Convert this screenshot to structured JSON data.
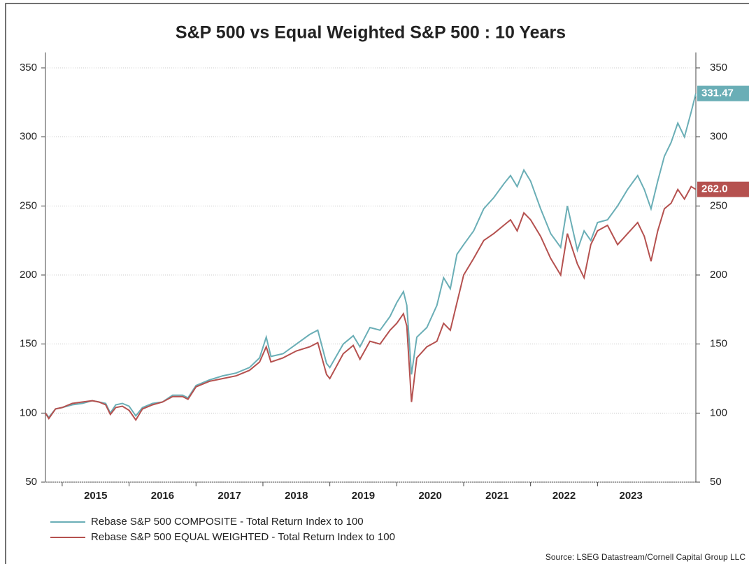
{
  "chart_data": {
    "type": "line",
    "title": "S&P 500 vs Equal Weighted S&P 500 : 10 Years",
    "source": "Source: LSEG Datastream/Cornell Capital Group LLC",
    "x": [
      2014.75,
      2014.8,
      2014.9,
      2015.0,
      2015.15,
      2015.3,
      2015.45,
      2015.55,
      2015.65,
      2015.72,
      2015.8,
      2015.9,
      2016.0,
      2016.1,
      2016.2,
      2016.35,
      2016.5,
      2016.65,
      2016.8,
      2016.88,
      2017.0,
      2017.2,
      2017.4,
      2017.6,
      2017.8,
      2017.95,
      2018.05,
      2018.12,
      2018.3,
      2018.5,
      2018.7,
      2018.82,
      2018.95,
      2019.0,
      2019.2,
      2019.35,
      2019.45,
      2019.6,
      2019.75,
      2019.9,
      2020.0,
      2020.1,
      2020.15,
      2020.22,
      2020.3,
      2020.45,
      2020.6,
      2020.7,
      2020.8,
      2020.9,
      2021.0,
      2021.15,
      2021.3,
      2021.45,
      2021.6,
      2021.7,
      2021.8,
      2021.9,
      2022.0,
      2022.15,
      2022.3,
      2022.45,
      2022.55,
      2022.7,
      2022.8,
      2022.9,
      2023.0,
      2023.15,
      2023.3,
      2023.45,
      2023.6,
      2023.7,
      2023.8,
      2023.9,
      2024.0,
      2024.1,
      2024.2,
      2024.3,
      2024.4,
      2024.47
    ],
    "series": [
      {
        "name": "Rebase S&P 500 COMPOSITE - Total Return Index to 100",
        "color": "#6aaeb6",
        "last_value_label": "331.47",
        "values": [
          100,
          97,
          103,
          104,
          106,
          107,
          109,
          108,
          107,
          100,
          106,
          107,
          105,
          98,
          104,
          107,
          108,
          113,
          113,
          111,
          120,
          124,
          127,
          129,
          133,
          140,
          155,
          141,
          143,
          150,
          157,
          160,
          136,
          133,
          150,
          156,
          148,
          162,
          160,
          170,
          180,
          188,
          178,
          128,
          155,
          162,
          178,
          198,
          190,
          215,
          222,
          232,
          248,
          256,
          266,
          272,
          264,
          276,
          268,
          248,
          230,
          220,
          250,
          218,
          232,
          225,
          238,
          240,
          250,
          262,
          272,
          262,
          248,
          268,
          286,
          296,
          310,
          300,
          318,
          331.47
        ]
      },
      {
        "name": "Rebase S&P 500 EQUAL WEIGHTED - Total Return Index to 100",
        "color": "#b5514f",
        "last_value_label": "262.0",
        "values": [
          100,
          96,
          103,
          104,
          107,
          108,
          109,
          108,
          106,
          99,
          104,
          105,
          102,
          95,
          103,
          106,
          108,
          112,
          112,
          110,
          119,
          123,
          125,
          127,
          131,
          137,
          148,
          137,
          140,
          145,
          148,
          151,
          128,
          125,
          143,
          149,
          139,
          152,
          150,
          160,
          165,
          172,
          163,
          108,
          140,
          148,
          152,
          165,
          160,
          180,
          200,
          212,
          225,
          230,
          236,
          240,
          232,
          245,
          240,
          228,
          212,
          200,
          230,
          208,
          198,
          222,
          232,
          236,
          222,
          230,
          238,
          228,
          210,
          232,
          248,
          252,
          262,
          255,
          264,
          262.0
        ]
      }
    ],
    "xlim": [
      2014.75,
      2024.47
    ],
    "xticks": [
      2015,
      2016,
      2017,
      2018,
      2019,
      2020,
      2021,
      2022,
      2023
    ],
    "ylim": [
      50,
      350
    ],
    "yticks": [
      50,
      100,
      150,
      200,
      250,
      300,
      350
    ],
    "y2lim": [
      50,
      350
    ],
    "y2ticks": [
      50,
      100,
      150,
      200,
      250,
      300,
      350
    ],
    "grid": true,
    "legend": "bottom-left"
  }
}
